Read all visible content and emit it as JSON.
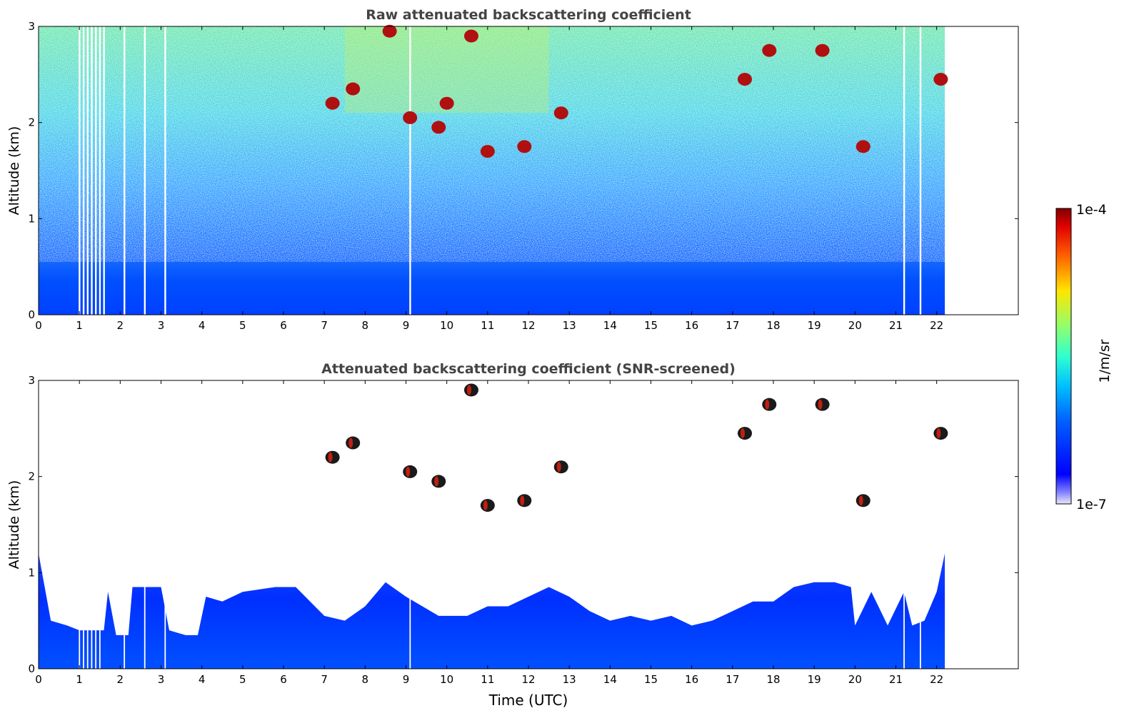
{
  "figure": {
    "xlabel": "Time (UTC)",
    "colorbar": {
      "label": "1/m/sr",
      "top_label": "1e-4",
      "bottom_label": "1e-7",
      "scale": "log",
      "range": [
        "1e-7",
        "1e-4"
      ],
      "colormap": "jet"
    }
  },
  "chart_data": [
    {
      "type": "heatmap",
      "title": "Raw attenuated backscattering coefficient",
      "xlabel": "",
      "ylabel": "Altitude (km)",
      "xlim": [
        0,
        24
      ],
      "ylim": [
        0,
        3
      ],
      "data_extent_x": [
        0,
        22.2
      ],
      "xticks": [
        "0",
        "1",
        "2",
        "3",
        "4",
        "5",
        "6",
        "7",
        "8",
        "9",
        "10",
        "11",
        "12",
        "13",
        "14",
        "15",
        "16",
        "17",
        "18",
        "19",
        "20",
        "21",
        "22"
      ],
      "yticks": [
        "0",
        "1",
        "2",
        "3"
      ],
      "description_values": {
        "boundary_layer_top_km": 0.5,
        "missing_profiles_utc": [
          1.0,
          1.1,
          1.2,
          1.3,
          1.4,
          1.5,
          1.6,
          2.1,
          2.6,
          3.1,
          9.1,
          21.2,
          21.6
        ]
      },
      "clouds": [
        {
          "t": 7.2,
          "alt": 2.2
        },
        {
          "t": 7.7,
          "alt": 2.35
        },
        {
          "t": 8.6,
          "alt": 2.95
        },
        {
          "t": 9.1,
          "alt": 2.05
        },
        {
          "t": 9.8,
          "alt": 1.95
        },
        {
          "t": 10.0,
          "alt": 2.2
        },
        {
          "t": 10.6,
          "alt": 2.9
        },
        {
          "t": 11.0,
          "alt": 1.7
        },
        {
          "t": 11.9,
          "alt": 1.75
        },
        {
          "t": 12.8,
          "alt": 2.1
        },
        {
          "t": 17.3,
          "alt": 2.45
        },
        {
          "t": 17.9,
          "alt": 2.75
        },
        {
          "t": 19.2,
          "alt": 2.75
        },
        {
          "t": 20.2,
          "alt": 1.75
        },
        {
          "t": 22.1,
          "alt": 2.45
        }
      ]
    },
    {
      "type": "heatmap",
      "title": "Attenuated backscattering coefficient (SNR-screened)",
      "xlabel": "Time (UTC)",
      "ylabel": "Altitude (km)",
      "xlim": [
        0,
        24
      ],
      "ylim": [
        0,
        3
      ],
      "data_extent_x": [
        0,
        22.2
      ],
      "xticks": [
        "0",
        "1",
        "2",
        "3",
        "4",
        "5",
        "6",
        "7",
        "8",
        "9",
        "10",
        "11",
        "12",
        "13",
        "14",
        "15",
        "16",
        "17",
        "18",
        "19",
        "20",
        "21",
        "22"
      ],
      "yticks": [
        "0",
        "1",
        "2",
        "3"
      ],
      "boundary_layer_top_km": [
        [
          0,
          1.2
        ],
        [
          0.3,
          0.5
        ],
        [
          0.7,
          0.45
        ],
        [
          1.0,
          0.4
        ],
        [
          1.6,
          0.4
        ],
        [
          1.7,
          0.8
        ],
        [
          1.9,
          0.35
        ],
        [
          2.2,
          0.35
        ],
        [
          2.3,
          0.85
        ],
        [
          3.0,
          0.85
        ],
        [
          3.2,
          0.4
        ],
        [
          3.6,
          0.35
        ],
        [
          3.9,
          0.35
        ],
        [
          4.1,
          0.75
        ],
        [
          4.5,
          0.7
        ],
        [
          5.0,
          0.8
        ],
        [
          5.8,
          0.85
        ],
        [
          6.3,
          0.85
        ],
        [
          7.0,
          0.55
        ],
        [
          7.5,
          0.5
        ],
        [
          8.0,
          0.65
        ],
        [
          8.5,
          0.9
        ],
        [
          9.0,
          0.75
        ],
        [
          9.8,
          0.55
        ],
        [
          10.5,
          0.55
        ],
        [
          11.0,
          0.65
        ],
        [
          11.5,
          0.65
        ],
        [
          12.0,
          0.75
        ],
        [
          12.5,
          0.85
        ],
        [
          13.0,
          0.75
        ],
        [
          13.5,
          0.6
        ],
        [
          14.0,
          0.5
        ],
        [
          14.5,
          0.55
        ],
        [
          15.0,
          0.5
        ],
        [
          15.5,
          0.55
        ],
        [
          16.0,
          0.45
        ],
        [
          16.5,
          0.5
        ],
        [
          17.0,
          0.6
        ],
        [
          17.5,
          0.7
        ],
        [
          18.0,
          0.7
        ],
        [
          18.5,
          0.85
        ],
        [
          19.0,
          0.9
        ],
        [
          19.5,
          0.9
        ],
        [
          19.9,
          0.85
        ],
        [
          20.0,
          0.45
        ],
        [
          20.4,
          0.8
        ],
        [
          20.8,
          0.45
        ],
        [
          21.2,
          0.8
        ],
        [
          21.4,
          0.45
        ],
        [
          21.7,
          0.5
        ],
        [
          22.0,
          0.8
        ],
        [
          22.2,
          1.2
        ]
      ],
      "clouds": [
        {
          "t": 7.2,
          "alt": 2.2
        },
        {
          "t": 7.7,
          "alt": 2.35
        },
        {
          "t": 9.1,
          "alt": 2.05
        },
        {
          "t": 9.8,
          "alt": 1.95
        },
        {
          "t": 10.6,
          "alt": 2.9
        },
        {
          "t": 11.0,
          "alt": 1.7
        },
        {
          "t": 11.9,
          "alt": 1.75
        },
        {
          "t": 12.8,
          "alt": 2.1
        },
        {
          "t": 17.3,
          "alt": 2.45
        },
        {
          "t": 17.9,
          "alt": 2.75
        },
        {
          "t": 19.2,
          "alt": 2.75
        },
        {
          "t": 20.2,
          "alt": 1.75
        },
        {
          "t": 22.1,
          "alt": 2.45
        }
      ]
    }
  ]
}
